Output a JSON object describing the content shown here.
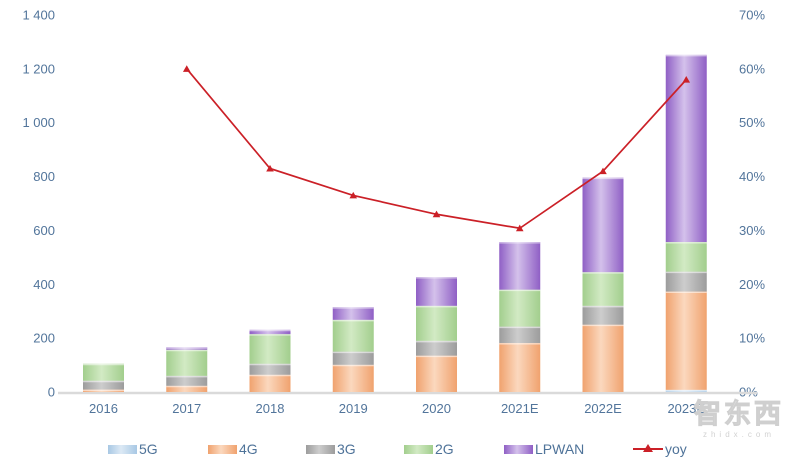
{
  "watermark": {
    "logo": "智东西",
    "domain": "zhidx.com"
  },
  "chart_data": {
    "type": "bar",
    "subtype": "stacked-bar-with-line",
    "title": "",
    "xlabel": "",
    "ylabel": "",
    "grid": false,
    "legend_position": "bottom",
    "categories": [
      "2016",
      "2017",
      "2018",
      "2019",
      "2020",
      "2021E",
      "2022E",
      "2023E"
    ],
    "stacked_series": [
      {
        "name": "5G",
        "color_edge": "#A8C8E4",
        "color_center": "#DCE9F5",
        "values": [
          0,
          0,
          0,
          0,
          0,
          0,
          0,
          8
        ]
      },
      {
        "name": "4G",
        "color_edge": "#F0A26E",
        "color_center": "#FBD8BE",
        "values": [
          9,
          23,
          64,
          101,
          135,
          182,
          250,
          365
        ]
      },
      {
        "name": "3G",
        "color_edge": "#9C9C9C",
        "color_center": "#CDCDCD",
        "values": [
          33,
          37,
          41,
          49,
          55,
          61,
          70,
          74
        ]
      },
      {
        "name": "2G",
        "color_edge": "#A2CE8D",
        "color_center": "#D2EAC4",
        "values": [
          63,
          97,
          110,
          118,
          130,
          137,
          125,
          110
        ]
      },
      {
        "name": "LPWAN",
        "color_edge": "#8F5FC5",
        "color_center": "#D4C1EB",
        "values": [
          0,
          9,
          16,
          47,
          107,
          177,
          351,
          695
        ]
      }
    ],
    "bar_totals": [
      105,
      166,
      231,
      315,
      427,
      557,
      796,
      1252
    ],
    "line_series": {
      "name": "yoy",
      "color": "#CB2027",
      "values": [
        null,
        60,
        41.5,
        36.5,
        33,
        30.4,
        41,
        58
      ]
    },
    "left_axis": {
      "min": 0,
      "max": 1400,
      "ticks": [
        "0",
        "200",
        "400",
        "600",
        "800",
        "1 000",
        "1 200",
        "1 400"
      ]
    },
    "right_axis": {
      "min": 0,
      "max": 70,
      "ticks": [
        "0%",
        "10%",
        "20%",
        "30%",
        "40%",
        "50%",
        "60%",
        "70%"
      ]
    }
  }
}
